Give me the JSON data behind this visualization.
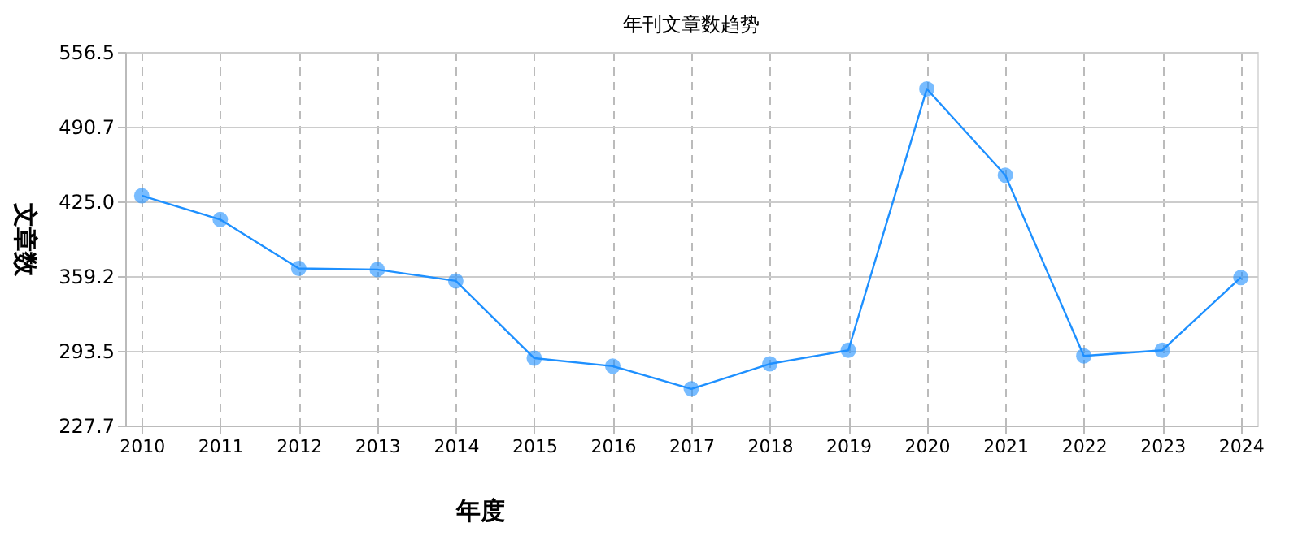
{
  "chart_data": {
    "type": "line",
    "title": "年刊文章数趋势",
    "xlabel": "年度",
    "ylabel": "文章数",
    "categories": [
      "2010",
      "2011",
      "2012",
      "2013",
      "2014",
      "2015",
      "2016",
      "2017",
      "2018",
      "2019",
      "2020",
      "2021",
      "2022",
      "2023",
      "2024"
    ],
    "series": [
      {
        "color": "#1e90ff",
        "values": [
          430,
          409,
          366,
          365,
          355,
          287,
          280,
          260,
          282,
          294,
          524,
          448,
          289,
          294,
          358
        ]
      }
    ],
    "ylim": [
      227.7,
      556.5
    ],
    "yticks": [
      {
        "value": 227.7,
        "label": "227.7"
      },
      {
        "value": 293.5,
        "label": "293.5"
      },
      {
        "value": 359.2,
        "label": "359.2"
      },
      {
        "value": 425.0,
        "label": "425.0"
      },
      {
        "value": 490.7,
        "label": "490.7"
      },
      {
        "value": 556.5,
        "label": "556.5"
      }
    ],
    "grid": true,
    "marker": "circle",
    "line_style": "solid"
  }
}
